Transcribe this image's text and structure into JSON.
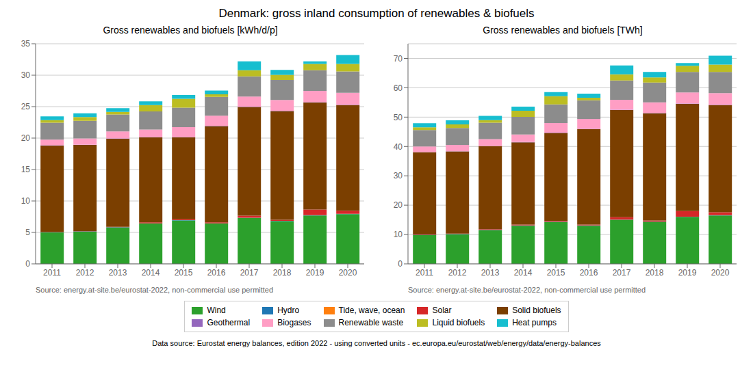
{
  "title": "Denmark: gross inland consumption of renewables & biofuels",
  "annotations": [
    "Data source: Eurostat energy balances, edition 2022 - using converted units - ec.europa.eu/eurostat/web/energy/data/energy-balances"
  ],
  "legend": "bottom",
  "chart_data": [
    {
      "type": "bar",
      "title": "Gross renewables and biofuels [kWh/d/p]",
      "annotations": [
        "Source: energy.at-site.be/eurostat-2022, non-commercial use permitted"
      ],
      "stacked": true,
      "grid": true,
      "categories": [
        2011,
        2012,
        2013,
        2014,
        2015,
        2016,
        2017,
        2018,
        2019,
        2020
      ],
      "ylim": [
        0,
        35
      ],
      "yticks": [
        0,
        5,
        10,
        15,
        20,
        25,
        30,
        35
      ],
      "series": [
        {
          "name": "Wind",
          "color": "#2ca02c",
          "values": [
            5.0,
            5.1,
            5.8,
            6.4,
            6.9,
            6.4,
            7.3,
            6.8,
            7.7,
            7.9
          ]
        },
        {
          "name": "Hydro",
          "color": "#1f77b4",
          "values": [
            0.05,
            0.05,
            0.05,
            0.05,
            0.05,
            0.05,
            0.05,
            0.05,
            0.05,
            0.05
          ]
        },
        {
          "name": "Tide, wave, ocean",
          "color": "#ff7f0e",
          "values": [
            0.0,
            0.0,
            0.0,
            0.0,
            0.0,
            0.0,
            0.0,
            0.0,
            0.0,
            0.0
          ]
        },
        {
          "name": "Solar",
          "color": "#d62728",
          "values": [
            0.05,
            0.05,
            0.05,
            0.15,
            0.15,
            0.15,
            0.3,
            0.15,
            0.9,
            0.5
          ]
        },
        {
          "name": "Solid biofuels",
          "color": "#7B3F00",
          "values": [
            13.7,
            13.7,
            14.0,
            13.5,
            13.0,
            15.3,
            17.3,
            17.3,
            17.0,
            16.8
          ]
        },
        {
          "name": "Geothermal",
          "color": "#9467bd",
          "values": [
            0.05,
            0.05,
            0.05,
            0.05,
            0.05,
            0.05,
            0.05,
            0.05,
            0.05,
            0.05
          ]
        },
        {
          "name": "Biogases",
          "color": "#ff9ec4",
          "values": [
            0.9,
            1.0,
            1.1,
            1.2,
            1.6,
            1.6,
            1.6,
            1.7,
            1.8,
            1.9
          ]
        },
        {
          "name": "Renewable waste",
          "color": "#8c8c8c",
          "values": [
            2.7,
            2.8,
            2.7,
            2.9,
            3.1,
            3.0,
            3.2,
            3.2,
            3.3,
            3.4
          ]
        },
        {
          "name": "Liquid biofuels",
          "color": "#bcbd22",
          "values": [
            0.4,
            0.6,
            0.4,
            1.0,
            1.4,
            0.4,
            1.0,
            0.8,
            1.0,
            1.2
          ]
        },
        {
          "name": "Heat pumps",
          "color": "#17becf",
          "values": [
            0.6,
            0.6,
            0.6,
            0.6,
            0.6,
            0.6,
            1.4,
            0.8,
            0.4,
            1.4
          ]
        }
      ]
    },
    {
      "type": "bar",
      "title": "Gross renewables and biofuels [TWh]",
      "annotations": [
        "Source: energy.at-site.be/eurostat-2022, non-commercial use permitted"
      ],
      "stacked": true,
      "grid": true,
      "categories": [
        2011,
        2012,
        2013,
        2014,
        2015,
        2016,
        2017,
        2018,
        2019,
        2020
      ],
      "ylim": [
        0,
        75
      ],
      "yticks": [
        0,
        10,
        20,
        30,
        40,
        50,
        60,
        70
      ],
      "series": [
        {
          "name": "Wind",
          "color": "#2ca02c",
          "values": [
            9.8,
            10.1,
            11.5,
            13.0,
            14.2,
            13.0,
            15.0,
            14.3,
            16.0,
            16.5
          ]
        },
        {
          "name": "Hydro",
          "color": "#1f77b4",
          "values": [
            0.1,
            0.1,
            0.1,
            0.1,
            0.1,
            0.1,
            0.1,
            0.1,
            0.1,
            0.1
          ]
        },
        {
          "name": "Tide, wave, ocean",
          "color": "#ff7f0e",
          "values": [
            0.0,
            0.0,
            0.0,
            0.0,
            0.0,
            0.0,
            0.0,
            0.0,
            0.0,
            0.0
          ]
        },
        {
          "name": "Solar",
          "color": "#d62728",
          "values": [
            0.1,
            0.1,
            0.2,
            0.3,
            0.3,
            0.3,
            0.8,
            0.4,
            1.9,
            1.0
          ]
        },
        {
          "name": "Solid biofuels",
          "color": "#7B3F00",
          "values": [
            28.0,
            28.0,
            28.3,
            28.0,
            30.0,
            32.5,
            36.5,
            36.5,
            36.5,
            36.5
          ]
        },
        {
          "name": "Geothermal",
          "color": "#9467bd",
          "values": [
            0.1,
            0.1,
            0.1,
            0.1,
            0.1,
            0.1,
            0.1,
            0.1,
            0.1,
            0.1
          ]
        },
        {
          "name": "Biogases",
          "color": "#ff9ec4",
          "values": [
            1.9,
            2.1,
            2.3,
            2.6,
            3.3,
            3.4,
            3.4,
            3.6,
            3.8,
            4.0
          ]
        },
        {
          "name": "Renewable waste",
          "color": "#8c8c8c",
          "values": [
            5.6,
            5.8,
            5.6,
            6.0,
            6.3,
            6.3,
            6.6,
            6.8,
            7.0,
            7.2
          ]
        },
        {
          "name": "Liquid biofuels",
          "color": "#bcbd22",
          "values": [
            0.9,
            1.2,
            0.9,
            2.1,
            2.8,
            0.9,
            2.1,
            1.7,
            2.1,
            2.5
          ]
        },
        {
          "name": "Heat pumps",
          "color": "#17becf",
          "values": [
            1.4,
            1.4,
            1.4,
            1.4,
            1.4,
            1.4,
            3.0,
            1.9,
            0.9,
            3.0
          ]
        }
      ]
    }
  ]
}
